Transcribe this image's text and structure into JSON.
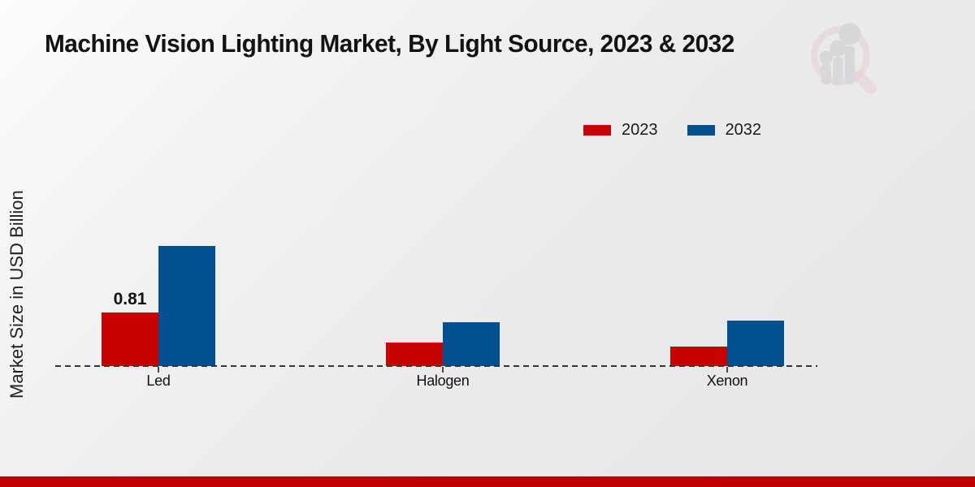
{
  "header": {
    "title": "Machine Vision Lighting Market, By Light Source, 2023 & 2032"
  },
  "watermark": {
    "icon": "magnifier-bar-chart-logo"
  },
  "chart_data": {
    "type": "bar",
    "title": "Machine Vision Lighting Market, By Light Source, 2023 & 2032",
    "xlabel": "",
    "ylabel": "Market Size in USD Billion",
    "categories": [
      "Led",
      "Halogen",
      "Xenon"
    ],
    "series": [
      {
        "name": "2023",
        "color": "#c80101",
        "values": [
          0.81,
          0.36,
          0.29
        ],
        "value_labels": [
          "0.81",
          "",
          ""
        ]
      },
      {
        "name": "2032",
        "color": "#02508f",
        "values": [
          1.82,
          0.66,
          0.69
        ],
        "value_labels": [
          "",
          "",
          ""
        ]
      }
    ],
    "ylim": [
      0,
      2.2
    ],
    "grid": false,
    "legend_position": "top-right",
    "baseline_style": "dashed"
  },
  "footer": {
    "accent_color": "#c00000"
  }
}
